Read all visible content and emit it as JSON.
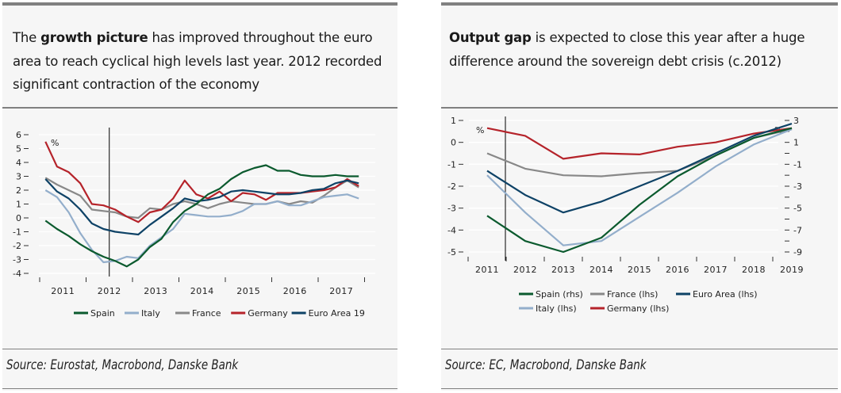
{
  "panels": [
    {
      "headline_bold": "growth picture",
      "headline_pre": "The ",
      "headline_post": " has improved throughout the euro area to reach cyclical high levels last year. 2012 recorded significant contraction of the economy",
      "source": "Source: Eurostat, Macrobond, Danske Bank"
    },
    {
      "headline_bold": "Output gap",
      "headline_pre": "",
      "headline_post": " is expected to close this year after a huge difference around the sovereign debt crisis (c.2012)",
      "source": "Source: EC, Macrobond, Danske Bank"
    }
  ],
  "chart_data": [
    {
      "type": "line",
      "title": "",
      "unit_label": "%",
      "xlabel": "",
      "ylabel": "%",
      "ylim": [
        -4,
        6
      ],
      "yticks": [
        6,
        5,
        4,
        3,
        2,
        1,
        0,
        -1,
        -2,
        -3,
        -4
      ],
      "x_tick_labels": [
        "2011",
        "2012",
        "2013",
        "2014",
        "2015",
        "2016",
        "2017"
      ],
      "x": [
        "2011Q1",
        "2011Q2",
        "2011Q3",
        "2011Q4",
        "2012Q1",
        "2012Q2",
        "2012Q3",
        "2012Q4",
        "2013Q1",
        "2013Q2",
        "2013Q3",
        "2013Q4",
        "2014Q1",
        "2014Q2",
        "2014Q3",
        "2014Q4",
        "2015Q1",
        "2015Q2",
        "2015Q3",
        "2015Q4",
        "2016Q1",
        "2016Q2",
        "2016Q3",
        "2016Q4",
        "2017Q1",
        "2017Q2",
        "2017Q3",
        "2017Q4"
      ],
      "vertical_marker": "2012",
      "grid": true,
      "legend_position": "bottom",
      "series": [
        {
          "name": "Spain",
          "color": "#0b5a2e",
          "values": [
            -0.2,
            -0.8,
            -1.3,
            -1.9,
            -2.4,
            -2.8,
            -3.1,
            -3.5,
            -3.0,
            -2.1,
            -1.5,
            -0.3,
            0.5,
            1.0,
            1.7,
            2.1,
            2.8,
            3.3,
            3.6,
            3.8,
            3.4,
            3.4,
            3.1,
            3.0,
            3.0,
            3.1,
            3.0,
            3.0
          ]
        },
        {
          "name": "Italy",
          "color": "#93aecb",
          "values": [
            2.0,
            1.5,
            0.4,
            -1.1,
            -2.3,
            -3.2,
            -3.1,
            -2.8,
            -2.9,
            -2.0,
            -1.4,
            -0.8,
            0.3,
            0.2,
            0.1,
            0.1,
            0.2,
            0.5,
            1.0,
            1.0,
            1.2,
            0.9,
            0.9,
            1.2,
            1.5,
            1.6,
            1.7,
            1.4
          ]
        },
        {
          "name": "France",
          "color": "#888888",
          "values": [
            2.9,
            2.4,
            2.0,
            1.6,
            0.6,
            0.5,
            0.4,
            0.1,
            0.0,
            0.7,
            0.6,
            1.0,
            1.2,
            1.0,
            0.7,
            1.0,
            1.2,
            1.1,
            1.0,
            1.0,
            1.2,
            1.0,
            1.2,
            1.1,
            1.6,
            2.2,
            2.7,
            2.2
          ]
        },
        {
          "name": "Germany",
          "color": "#b5232a",
          "values": [
            5.5,
            3.7,
            3.3,
            2.5,
            1.0,
            0.9,
            0.6,
            0.1,
            -0.3,
            0.4,
            0.6,
            1.4,
            2.7,
            1.7,
            1.4,
            1.9,
            1.2,
            1.8,
            1.7,
            1.3,
            1.8,
            1.8,
            1.8,
            1.9,
            2.0,
            2.2,
            2.8,
            2.3
          ]
        },
        {
          "name": "Euro Area 19",
          "color": "#0e4266",
          "values": [
            2.8,
            1.9,
            1.4,
            0.6,
            -0.4,
            -0.8,
            -1.0,
            -1.1,
            -1.2,
            -0.5,
            0.1,
            0.7,
            1.4,
            1.2,
            1.3,
            1.5,
            1.9,
            2.0,
            1.9,
            1.8,
            1.7,
            1.7,
            1.8,
            2.0,
            2.1,
            2.5,
            2.7,
            2.5
          ]
        }
      ]
    },
    {
      "type": "line",
      "title": "",
      "unit_label_left": "%",
      "unit_label_right": "%",
      "xlabel": "",
      "ylabel_left": "%",
      "ylabel_right": "%",
      "ylim_left": [
        -5,
        1
      ],
      "ylim_right": [
        -9,
        3
      ],
      "yticks_left": [
        1,
        0,
        -1,
        -2,
        -3,
        -4,
        -5
      ],
      "yticks_right_labeled": [
        3,
        1,
        -1,
        -3,
        -5,
        -7,
        -9
      ],
      "x": [
        "2011",
        "2012",
        "2013",
        "2014",
        "2015",
        "2016",
        "2017",
        "2018",
        "2019"
      ],
      "x_tick_labels": [
        "2011",
        "2012",
        "2013",
        "2014",
        "2015",
        "2016",
        "2017",
        "2018",
        "2019"
      ],
      "vertical_marker": "2011.5",
      "grid": true,
      "legend_position": "bottom",
      "series": [
        {
          "name": "Spain (rhs)",
          "axis": "right",
          "color": "#0b5a2e",
          "values": [
            -5.7,
            -8.0,
            -9.0,
            -7.7,
            -4.7,
            -2.1,
            -0.2,
            1.4,
            2.3
          ]
        },
        {
          "name": "Italy (lhs)",
          "axis": "left",
          "color": "#93aecb",
          "values": [
            -1.5,
            -3.2,
            -4.7,
            -4.5,
            -3.4,
            -2.3,
            -1.1,
            -0.1,
            0.6
          ]
        },
        {
          "name": "France (lhs)",
          "axis": "left",
          "color": "#888888",
          "values": [
            -0.5,
            -1.2,
            -1.5,
            -1.55,
            -1.4,
            -1.3,
            -0.6,
            0.2,
            0.6
          ]
        },
        {
          "name": "Germany (lhs)",
          "axis": "left",
          "color": "#b5232a",
          "values": [
            0.65,
            0.3,
            -0.75,
            -0.5,
            -0.55,
            -0.2,
            0.0,
            0.4,
            0.65
          ]
        },
        {
          "name": "Euro Area (lhs)",
          "axis": "left",
          "color": "#0e4266",
          "values": [
            -1.3,
            -2.4,
            -3.2,
            -2.7,
            -2.0,
            -1.3,
            -0.5,
            0.3,
            0.85
          ]
        }
      ]
    }
  ]
}
